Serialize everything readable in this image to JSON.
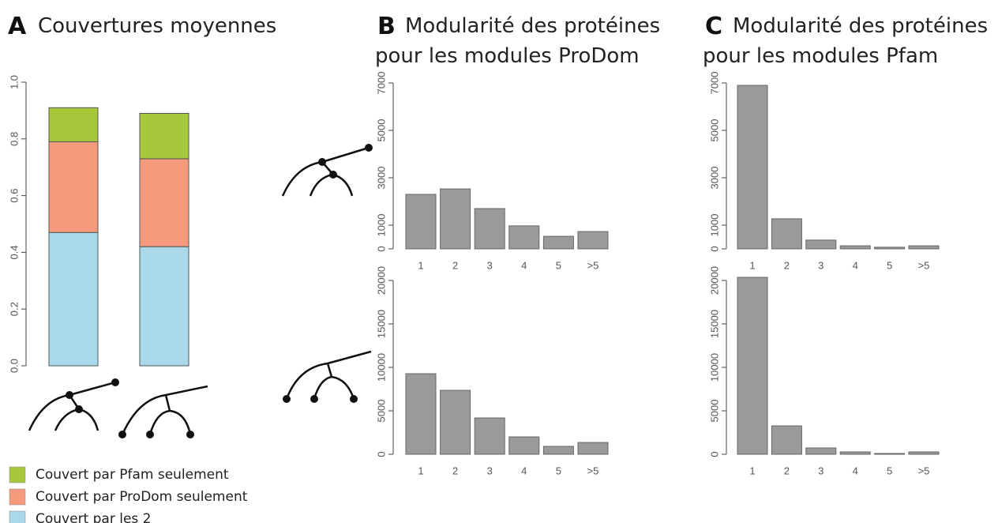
{
  "chart_data": [
    {
      "type": "stacked_bar",
      "panel": "A",
      "title": [
        "Couvertures moyennes"
      ],
      "categories": [
        null,
        null
      ],
      "series": [
        {
          "name": "Couvert par les 2",
          "color": "#a9d9ea",
          "values": [
            0.47,
            0.42
          ]
        },
        {
          "name": "Couvert par ProDom seulement",
          "color": "#f59a7d",
          "values": [
            0.32,
            0.31
          ]
        },
        {
          "name": "Couvert par Pfam seulement",
          "color": "#a8c83c",
          "values": [
            0.12,
            0.16
          ]
        }
      ],
      "ylim": [
        0,
        1
      ],
      "yticks": [
        {
          "value": 0,
          "label": "0.0"
        },
        0.2,
        0.4,
        0.6,
        0.8,
        {
          "value": 1,
          "label": "1.0"
        }
      ]
    },
    {
      "type": "bar",
      "panel": "B",
      "title": [
        "Modularité des protéines",
        "pour les modules ProDom"
      ],
      "categories": [
        "1",
        "2",
        "3",
        "4",
        "5",
        ">5"
      ],
      "values": [
        2300,
        2530,
        1700,
        970,
        530,
        730
      ],
      "color": "#9a9a9c",
      "ylim": [
        0,
        7000
      ],
      "yticks": [
        0,
        1000,
        3000,
        5000,
        7000
      ]
    },
    {
      "type": "bar",
      "categories": [
        "1",
        "2",
        "3",
        "4",
        "5",
        ">5"
      ],
      "values": [
        9270,
        7360,
        4180,
        2000,
        910,
        1360
      ],
      "color": "#9a9a9c",
      "ylim": [
        0,
        20000
      ],
      "yticks": [
        0,
        5000,
        10000,
        15000,
        20000
      ]
    },
    {
      "type": "bar",
      "panel": "C",
      "title": [
        "Modularité des protéines",
        "pour les modules Pfam"
      ],
      "categories": [
        "1",
        "2",
        "3",
        "4",
        "5",
        ">5"
      ],
      "values": [
        6900,
        1270,
        370,
        130,
        70,
        130
      ],
      "color": "#9a9a9c",
      "ylim": [
        0,
        7000
      ],
      "yticks": [
        0,
        1000,
        3000,
        5000,
        7000
      ]
    },
    {
      "type": "bar",
      "categories": [
        "1",
        "2",
        "3",
        "4",
        "5",
        ">5"
      ],
      "values": [
        20360,
        3270,
        730,
        270,
        90,
        270
      ],
      "color": "#9a9a9c",
      "ylim": [
        0,
        20000
      ],
      "yticks": [
        0,
        5000,
        10000,
        15000,
        20000
      ]
    }
  ]
}
